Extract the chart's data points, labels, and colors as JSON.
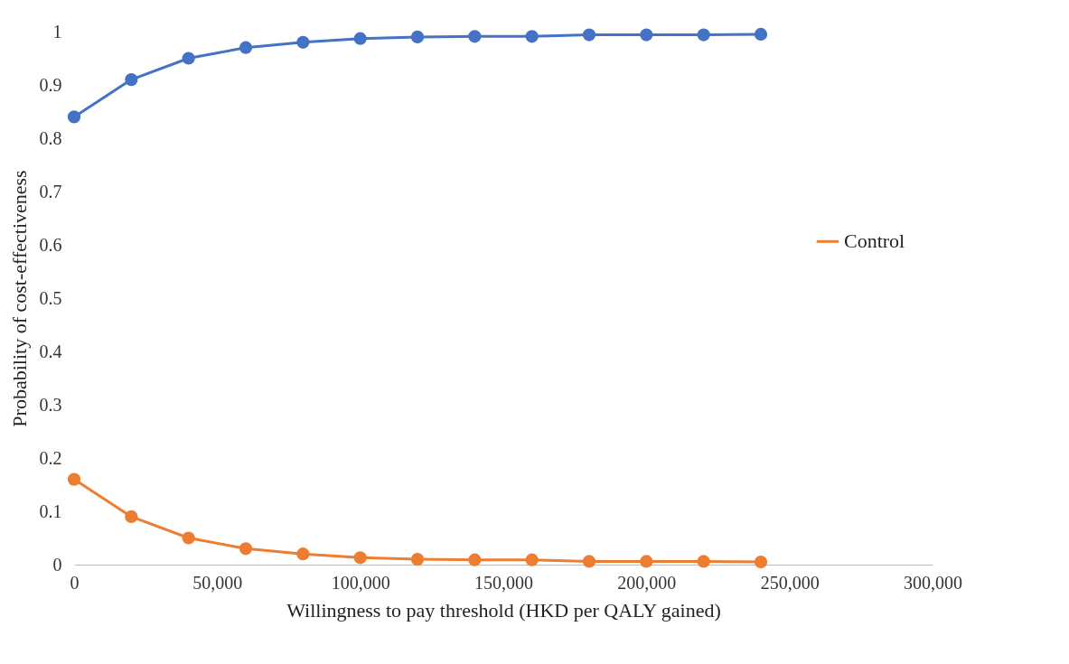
{
  "chart_data": {
    "type": "line",
    "xlabel": "Willingness to pay threshold (HKD  per QALY gained)",
    "ylabel": "Probability of cost-effectiveness",
    "x": [
      0,
      20000,
      40000,
      60000,
      80000,
      100000,
      120000,
      140000,
      160000,
      180000,
      200000,
      220000,
      240000
    ],
    "series": [
      {
        "color": "#4472c4",
        "values": [
          0.84,
          0.91,
          0.95,
          0.97,
          0.98,
          0.987,
          0.99,
          0.991,
          0.991,
          0.994,
          0.994,
          0.994,
          0.995
        ]
      },
      {
        "name": "Control",
        "color": "#ed7d31",
        "values": [
          0.16,
          0.09,
          0.05,
          0.03,
          0.02,
          0.013,
          0.01,
          0.009,
          0.009,
          0.006,
          0.006,
          0.006,
          0.005
        ]
      }
    ],
    "xlim": [
      0,
      300000
    ],
    "xticks": [
      0,
      {
        "value": 50000,
        "label": "50,000"
      },
      {
        "value": 100000,
        "label": "100,000"
      },
      {
        "value": 150000,
        "label": "150,000"
      },
      {
        "value": 200000,
        "label": "200,000"
      },
      {
        "value": 250000,
        "label": "250,000"
      },
      {
        "value": 300000,
        "label": "300,000"
      }
    ],
    "ylim": [
      0,
      1
    ],
    "yticks": [
      0,
      0.1,
      0.2,
      0.3,
      0.4,
      0.5,
      0.6,
      0.7,
      0.8,
      0.9,
      1
    ],
    "grid": false,
    "legend": "right",
    "marker": "circle",
    "line_style": "solid"
  }
}
